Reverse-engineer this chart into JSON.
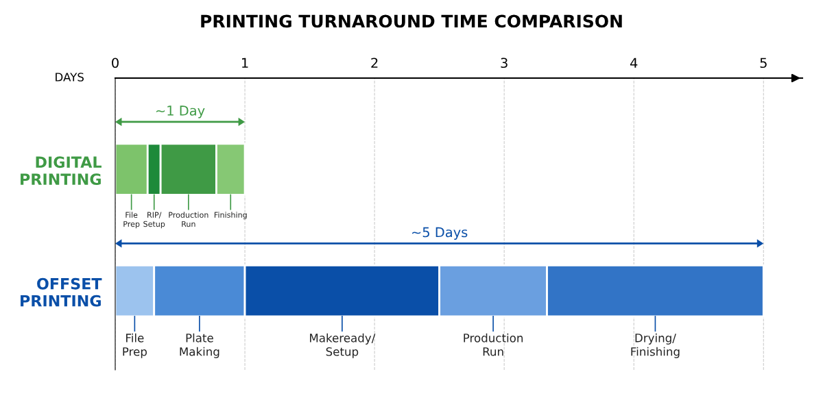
{
  "chart_data": {
    "type": "bar",
    "orientation": "horizontal",
    "stacked": true,
    "title": "PRINTING TURNAROUND TIME COMPARISON",
    "xlabel": "DAYS",
    "categories": [
      "DIGITAL\nPRINTING",
      "OFFSET\nPRINTING"
    ],
    "series": [
      {
        "colors": [
          "#7dc36b",
          "#9cc3ee"
        ],
        "values": [
          0.25,
          0.3
        ],
        "value_labels": [
          "File\nPrep",
          "File\nPrep"
        ]
      },
      {
        "colors": [
          "#1e8a3a",
          "#4a8ad6"
        ],
        "values": [
          0.1,
          0.7
        ],
        "value_labels": [
          "RIP/\nSetup",
          "Plate\nMaking"
        ]
      },
      {
        "colors": [
          "#3f9a45",
          "#0a4fa8"
        ],
        "values": [
          0.43,
          1.5
        ],
        "value_labels": [
          "Production\nRun",
          "Makeready/\nSetup"
        ]
      },
      {
        "colors": [
          "#86c874",
          "#6a9fe0"
        ],
        "values": [
          0.22,
          0.83
        ],
        "value_labels": [
          "Finishing",
          "Production\nRun"
        ]
      },
      {
        "colors": [
          "#3274c6",
          "#3274c6"
        ],
        "values": [
          null,
          1.67
        ],
        "value_labels": [
          null,
          "Drying/\nFinishing"
        ]
      }
    ],
    "annotations": [
      "~1 Day",
      "~5 Days"
    ],
    "xlim": [
      0,
      5.3
    ],
    "xticks": [
      0,
      1,
      2,
      3,
      4,
      5
    ],
    "grid": "x",
    "line_style": "dashed",
    "legend": false
  }
}
